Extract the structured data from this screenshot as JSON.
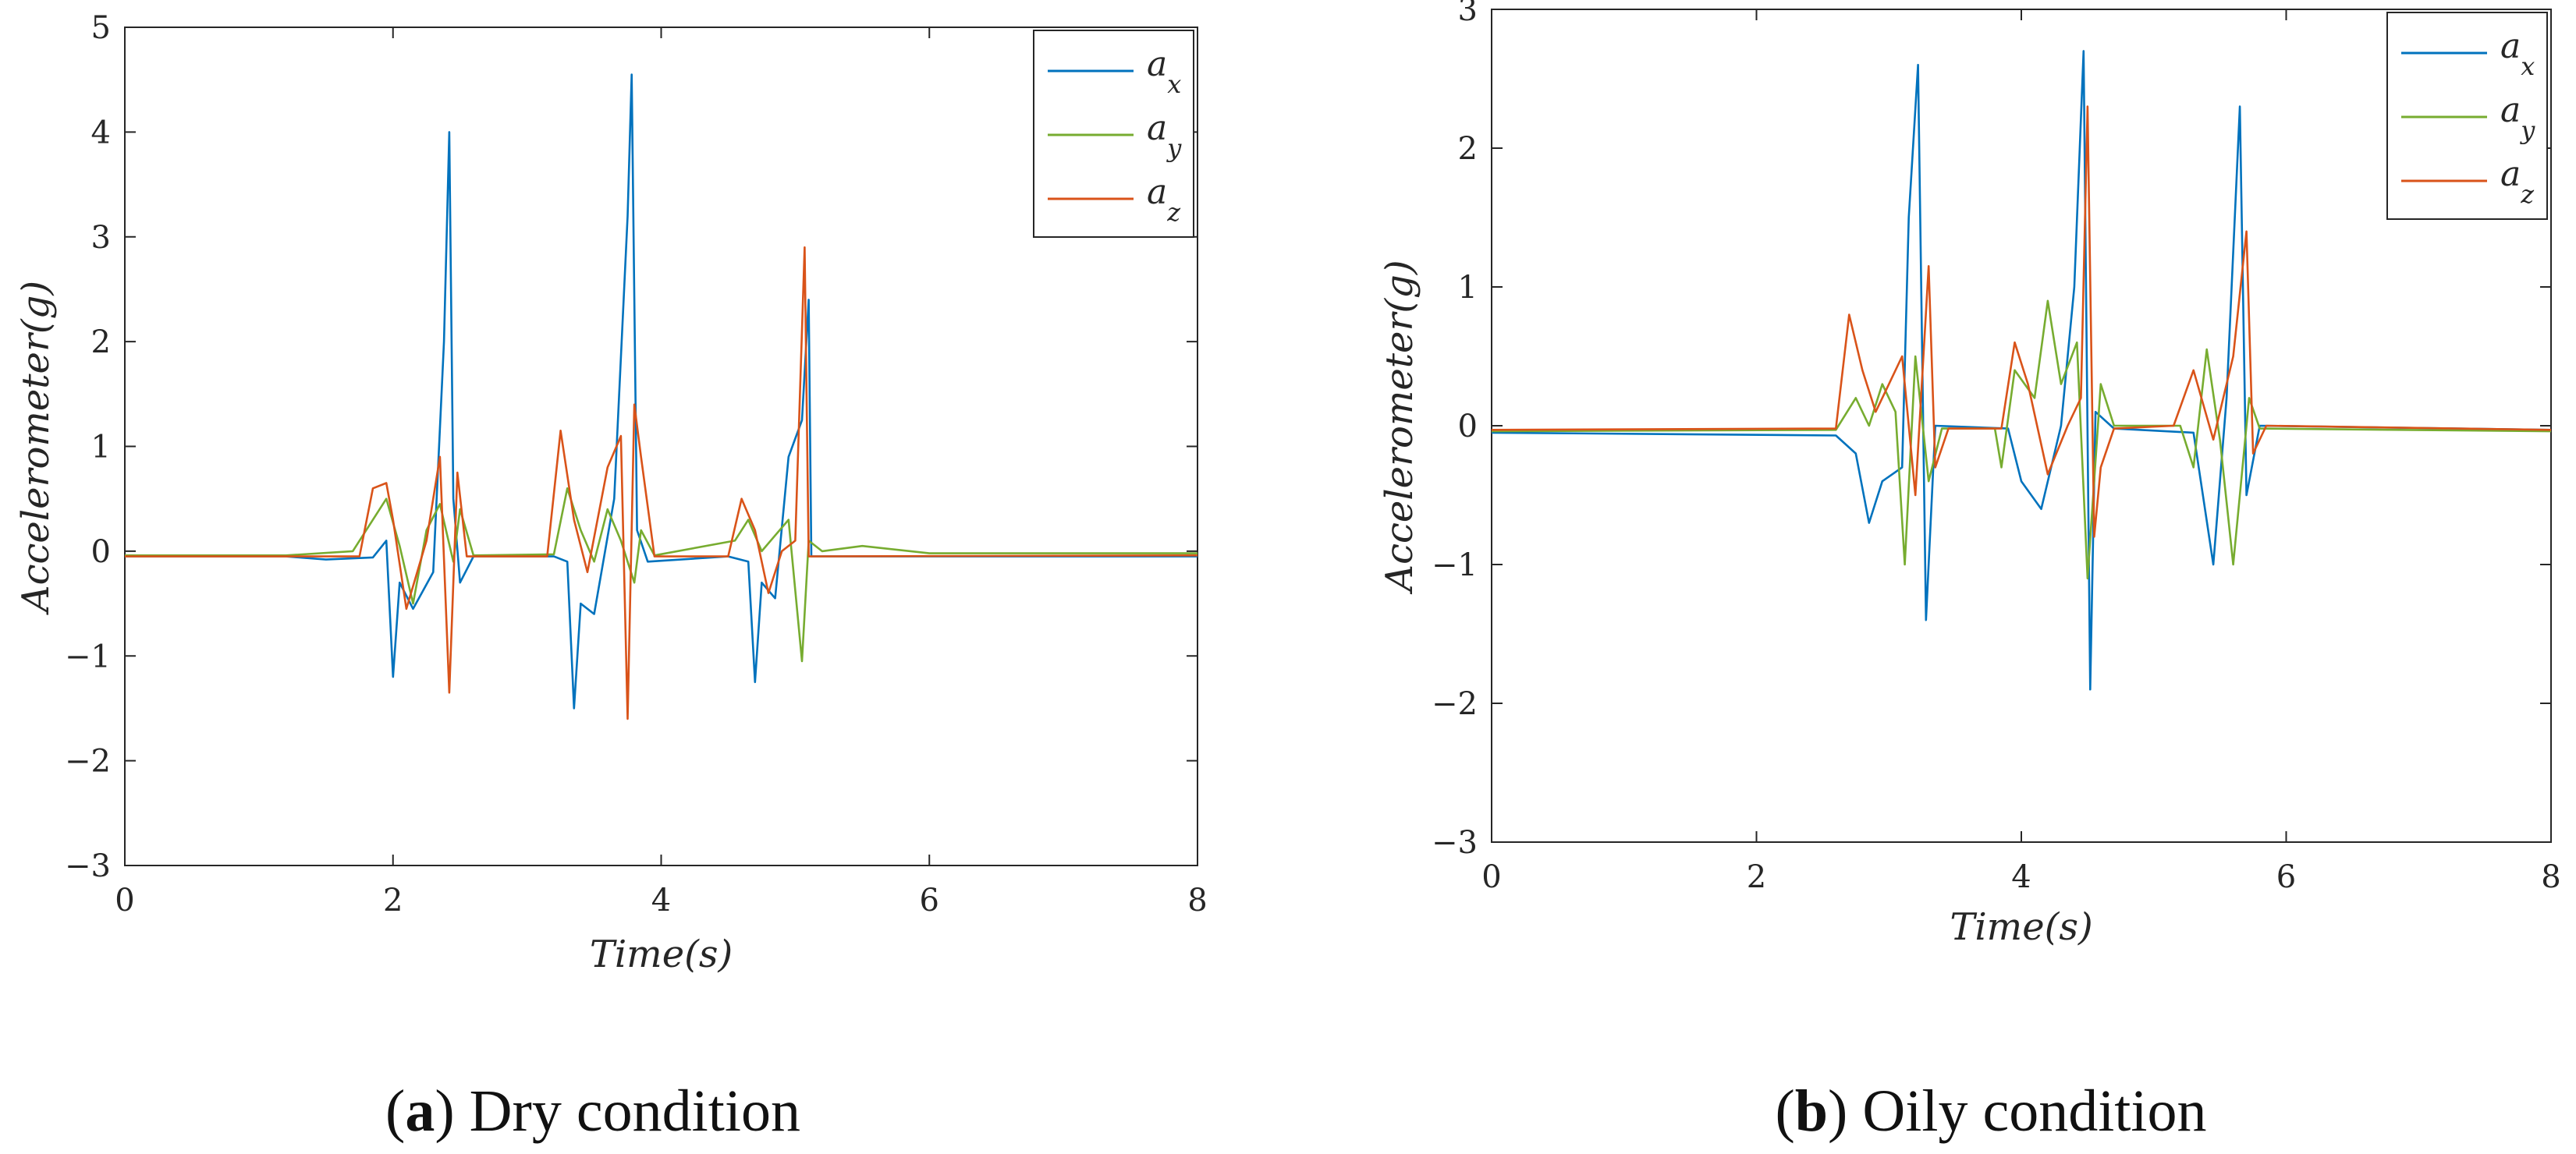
{
  "colors": {
    "ax": "#0072BD",
    "ay": "#77AC30",
    "az": "#D95319",
    "axis": "#262626"
  },
  "chart_data": [
    {
      "type": "line",
      "caption_letter": "a",
      "caption_text": " Dry condition",
      "xlabel": "Time(s)",
      "ylabel": "Accelerometer(g)",
      "xlim": [
        0,
        8
      ],
      "ylim": [
        -3,
        5
      ],
      "xticks": [
        0,
        2,
        4,
        6,
        8
      ],
      "yticks": [
        -3,
        -2,
        -1,
        0,
        1,
        2,
        3,
        4,
        5
      ],
      "xtick_labels": [
        "0",
        "2",
        "4",
        "6",
        "8"
      ],
      "ytick_labels": [
        "−3",
        "−2",
        "−1",
        "0",
        "1",
        "2",
        "3",
        "4",
        "5"
      ],
      "legend_position": "top-right",
      "series": [
        {
          "name": "a",
          "sub": "x",
          "key": "ax",
          "points": [
            [
              0,
              -0.05
            ],
            [
              1.2,
              -0.05
            ],
            [
              1.5,
              -0.08
            ],
            [
              1.85,
              -0.06
            ],
            [
              1.95,
              0.1
            ],
            [
              2.0,
              -1.2
            ],
            [
              2.05,
              -0.3
            ],
            [
              2.15,
              -0.55
            ],
            [
              2.3,
              -0.2
            ],
            [
              2.38,
              2.0
            ],
            [
              2.42,
              4.0
            ],
            [
              2.45,
              0.5
            ],
            [
              2.5,
              -0.3
            ],
            [
              2.6,
              -0.05
            ],
            [
              3.2,
              -0.05
            ],
            [
              3.3,
              -0.1
            ],
            [
              3.35,
              -1.5
            ],
            [
              3.4,
              -0.5
            ],
            [
              3.5,
              -0.6
            ],
            [
              3.65,
              0.5
            ],
            [
              3.75,
              3.2
            ],
            [
              3.78,
              4.55
            ],
            [
              3.82,
              0.2
            ],
            [
              3.9,
              -0.1
            ],
            [
              4.5,
              -0.05
            ],
            [
              4.65,
              -0.1
            ],
            [
              4.7,
              -1.25
            ],
            [
              4.75,
              -0.3
            ],
            [
              4.85,
              -0.45
            ],
            [
              4.95,
              0.9
            ],
            [
              5.05,
              1.25
            ],
            [
              5.1,
              2.4
            ],
            [
              5.12,
              -0.05
            ],
            [
              8,
              -0.05
            ]
          ]
        },
        {
          "name": "a",
          "sub": "y",
          "key": "ay",
          "points": [
            [
              0,
              -0.04
            ],
            [
              1.2,
              -0.04
            ],
            [
              1.7,
              0.0
            ],
            [
              1.85,
              0.3
            ],
            [
              1.95,
              0.5
            ],
            [
              2.05,
              0.05
            ],
            [
              2.15,
              -0.5
            ],
            [
              2.25,
              0.2
            ],
            [
              2.35,
              0.45
            ],
            [
              2.45,
              -0.1
            ],
            [
              2.5,
              0.4
            ],
            [
              2.6,
              -0.04
            ],
            [
              3.2,
              -0.03
            ],
            [
              3.3,
              0.6
            ],
            [
              3.4,
              0.2
            ],
            [
              3.5,
              -0.1
            ],
            [
              3.6,
              0.4
            ],
            [
              3.7,
              0.1
            ],
            [
              3.8,
              -0.3
            ],
            [
              3.85,
              0.2
            ],
            [
              3.95,
              -0.04
            ],
            [
              4.55,
              0.1
            ],
            [
              4.65,
              0.3
            ],
            [
              4.75,
              0.0
            ],
            [
              4.85,
              0.15
            ],
            [
              4.95,
              0.3
            ],
            [
              5.05,
              -1.05
            ],
            [
              5.1,
              0.1
            ],
            [
              5.2,
              0.0
            ],
            [
              5.5,
              0.05
            ],
            [
              6,
              -0.02
            ],
            [
              8,
              -0.02
            ]
          ]
        },
        {
          "name": "a",
          "sub": "z",
          "key": "az",
          "points": [
            [
              0,
              -0.05
            ],
            [
              1.75,
              -0.05
            ],
            [
              1.85,
              0.6
            ],
            [
              1.95,
              0.65
            ],
            [
              2.0,
              0.3
            ],
            [
              2.1,
              -0.55
            ],
            [
              2.25,
              0.1
            ],
            [
              2.35,
              0.9
            ],
            [
              2.42,
              -1.35
            ],
            [
              2.48,
              0.75
            ],
            [
              2.55,
              -0.05
            ],
            [
              3.15,
              -0.05
            ],
            [
              3.25,
              1.15
            ],
            [
              3.35,
              0.3
            ],
            [
              3.45,
              -0.2
            ],
            [
              3.6,
              0.8
            ],
            [
              3.7,
              1.1
            ],
            [
              3.75,
              -1.6
            ],
            [
              3.8,
              1.4
            ],
            [
              3.85,
              0.9
            ],
            [
              3.95,
              -0.05
            ],
            [
              4.5,
              -0.05
            ],
            [
              4.6,
              0.5
            ],
            [
              4.7,
              0.2
            ],
            [
              4.8,
              -0.4
            ],
            [
              4.9,
              0.0
            ],
            [
              5.0,
              0.1
            ],
            [
              5.07,
              2.9
            ],
            [
              5.1,
              -0.05
            ],
            [
              8,
              -0.04
            ]
          ]
        }
      ]
    },
    {
      "type": "line",
      "caption_letter": "b",
      "caption_text": " Oily condition",
      "xlabel": "Time(s)",
      "ylabel": "Accelerometer(g)",
      "xlim": [
        0,
        8
      ],
      "ylim": [
        -3,
        3
      ],
      "xticks": [
        0,
        2,
        4,
        6,
        8
      ],
      "yticks": [
        -3,
        -2,
        -1,
        0,
        1,
        2,
        3
      ],
      "xtick_labels": [
        "0",
        "2",
        "4",
        "6",
        "8"
      ],
      "ytick_labels": [
        "−3",
        "−2",
        "−1",
        "0",
        "1",
        "2",
        "3"
      ],
      "legend_position": "top-right",
      "series": [
        {
          "name": "a",
          "sub": "x",
          "key": "ax",
          "points": [
            [
              0,
              -0.05
            ],
            [
              2.6,
              -0.07
            ],
            [
              2.75,
              -0.2
            ],
            [
              2.85,
              -0.7
            ],
            [
              2.95,
              -0.4
            ],
            [
              3.1,
              -0.3
            ],
            [
              3.15,
              1.5
            ],
            [
              3.22,
              2.6
            ],
            [
              3.28,
              -1.4
            ],
            [
              3.35,
              0.0
            ],
            [
              3.9,
              -0.02
            ],
            [
              4.0,
              -0.4
            ],
            [
              4.15,
              -0.6
            ],
            [
              4.3,
              0.0
            ],
            [
              4.4,
              1.0
            ],
            [
              4.47,
              2.7
            ],
            [
              4.52,
              -1.9
            ],
            [
              4.56,
              0.1
            ],
            [
              4.7,
              -0.02
            ],
            [
              5.3,
              -0.05
            ],
            [
              5.45,
              -1.0
            ],
            [
              5.55,
              0.2
            ],
            [
              5.65,
              2.3
            ],
            [
              5.7,
              -0.5
            ],
            [
              5.8,
              0.0
            ],
            [
              8,
              -0.03
            ]
          ]
        },
        {
          "name": "a",
          "sub": "y",
          "key": "ay",
          "points": [
            [
              0,
              -0.04
            ],
            [
              2.6,
              -0.03
            ],
            [
              2.75,
              0.2
            ],
            [
              2.85,
              0.0
            ],
            [
              2.95,
              0.3
            ],
            [
              3.05,
              0.1
            ],
            [
              3.12,
              -1.0
            ],
            [
              3.2,
              0.5
            ],
            [
              3.3,
              -0.4
            ],
            [
              3.4,
              -0.02
            ],
            [
              3.8,
              -0.02
            ],
            [
              3.85,
              -0.3
            ],
            [
              3.95,
              0.4
            ],
            [
              4.1,
              0.2
            ],
            [
              4.2,
              0.9
            ],
            [
              4.3,
              0.3
            ],
            [
              4.42,
              0.6
            ],
            [
              4.5,
              -1.1
            ],
            [
              4.6,
              0.3
            ],
            [
              4.7,
              0.0
            ],
            [
              5.2,
              0.0
            ],
            [
              5.3,
              -0.3
            ],
            [
              5.4,
              0.55
            ],
            [
              5.5,
              -0.1
            ],
            [
              5.6,
              -1.0
            ],
            [
              5.72,
              0.2
            ],
            [
              5.8,
              -0.02
            ],
            [
              8,
              -0.04
            ]
          ]
        },
        {
          "name": "a",
          "sub": "z",
          "key": "az",
          "points": [
            [
              0,
              -0.03
            ],
            [
              2.6,
              -0.02
            ],
            [
              2.7,
              0.8
            ],
            [
              2.8,
              0.4
            ],
            [
              2.9,
              0.1
            ],
            [
              3.0,
              0.3
            ],
            [
              3.1,
              0.5
            ],
            [
              3.2,
              -0.5
            ],
            [
              3.3,
              1.15
            ],
            [
              3.35,
              -0.3
            ],
            [
              3.45,
              -0.02
            ],
            [
              3.85,
              -0.02
            ],
            [
              3.95,
              0.6
            ],
            [
              4.05,
              0.3
            ],
            [
              4.2,
              -0.35
            ],
            [
              4.35,
              0.0
            ],
            [
              4.45,
              0.2
            ],
            [
              4.5,
              2.3
            ],
            [
              4.55,
              -0.8
            ],
            [
              4.6,
              -0.3
            ],
            [
              4.7,
              -0.02
            ],
            [
              5.15,
              0.0
            ],
            [
              5.3,
              0.4
            ],
            [
              5.45,
              -0.1
            ],
            [
              5.6,
              0.5
            ],
            [
              5.7,
              1.4
            ],
            [
              5.75,
              -0.2
            ],
            [
              5.85,
              0.0
            ],
            [
              8,
              -0.03
            ]
          ]
        }
      ]
    }
  ]
}
